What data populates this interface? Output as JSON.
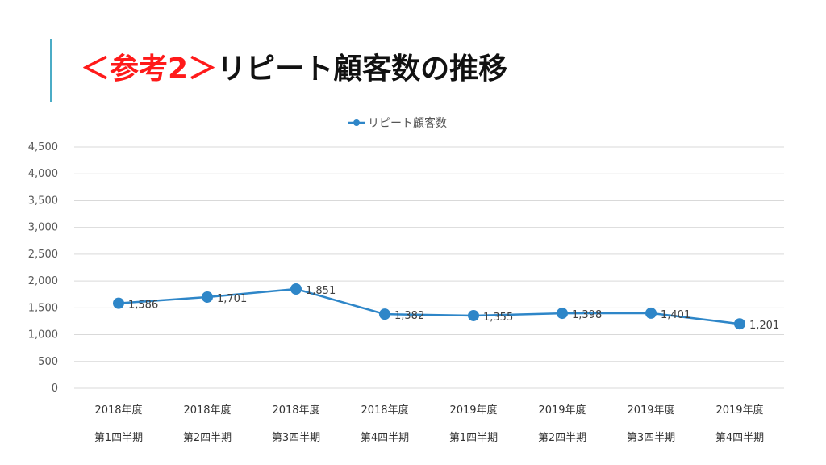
{
  "slide": {
    "title_prefix": "＜参考2＞",
    "title_main": "リピート顧客数の推移"
  },
  "chart_data": {
    "type": "line",
    "categories": [
      [
        "2018年度",
        "第1四半期"
      ],
      [
        "2018年度",
        "第2四半期"
      ],
      [
        "2018年度",
        "第3四半期"
      ],
      [
        "2018年度",
        "第4四半期"
      ],
      [
        "2019年度",
        "第1四半期"
      ],
      [
        "2019年度",
        "第2四半期"
      ],
      [
        "2019年度",
        "第3四半期"
      ],
      [
        "2019年度",
        "第4四半期"
      ]
    ],
    "series": [
      {
        "name": "リピート顧客数",
        "values": [
          1586,
          1701,
          1851,
          1382,
          1355,
          1398,
          1401,
          1201
        ],
        "labels": [
          "1,586",
          "1,701",
          "1,851",
          "1,382",
          "1,355",
          "1,398",
          "1,401",
          "1,201"
        ],
        "color": "#2e86c8"
      }
    ],
    "ylim": [
      0,
      4500
    ],
    "yticks": [
      0,
      500,
      1000,
      1500,
      2000,
      2500,
      3000,
      3500,
      4000,
      4500
    ],
    "ytick_labels": [
      "0",
      "500",
      "1,000",
      "1,500",
      "2,000",
      "2,500",
      "3,000",
      "3,500",
      "4,000",
      "4,500"
    ],
    "grid": true,
    "gridline_color": "#d9d9d9",
    "legend_position": "top-center",
    "title": "",
    "xlabel": "",
    "ylabel": ""
  }
}
